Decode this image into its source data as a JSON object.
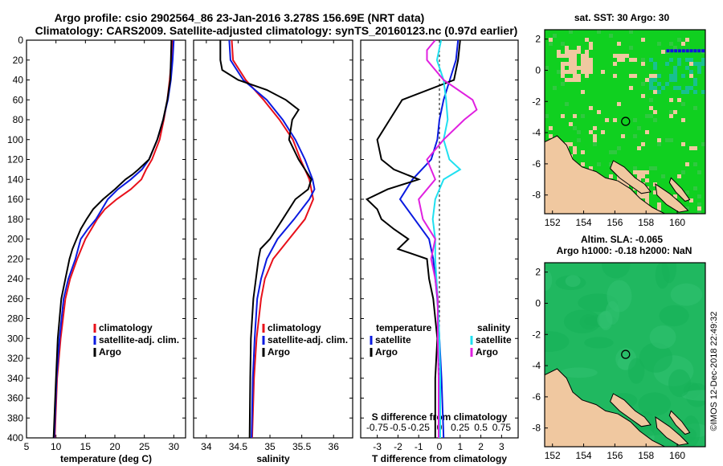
{
  "title_line1": "Argo profile: csio 2902564_86 23-Jan-2016 3.278S 156.69E (NRT data)",
  "title_line2": "Climatology: CARS2009. Satellite-adjusted climatology: synTS_20160123.nc (0.97d earlier)",
  "credit": "©IMOS 12-Dec-2018 22:49:32",
  "colors": {
    "climatology": "#e8101a",
    "satellite": "#0a1ae0",
    "argo": "#000000",
    "sal_sat": "#20e0f0",
    "sal_argo": "#e020e0",
    "land": "#f0c8a0",
    "sst_sea": "#10d020"
  },
  "depth_axis": {
    "ticks": [
      "0",
      "20",
      "40",
      "60",
      "80",
      "100",
      "120",
      "140",
      "160",
      "180",
      "200",
      "220",
      "240",
      "260",
      "280",
      "300",
      "320",
      "340",
      "360",
      "380",
      "400"
    ]
  },
  "chart_data": [
    {
      "type": "line",
      "id": "temperature",
      "xlabel": "temperature (deg C)",
      "ylabel": "",
      "xlim": [
        5,
        32
      ],
      "ylim": [
        400,
        0
      ],
      "xticks": [
        "5",
        "10",
        "15",
        "20",
        "25",
        "30"
      ],
      "xtick_values": [
        5,
        10,
        15,
        20,
        25,
        30
      ],
      "legend": [
        "climatology",
        "satellite-adj. clim.",
        "Argo"
      ],
      "series": [
        {
          "name": "climatology",
          "color": "climatology",
          "depth": [
            0,
            20,
            40,
            60,
            80,
            100,
            120,
            130,
            140,
            150,
            160,
            170,
            180,
            190,
            200,
            220,
            240,
            260,
            300,
            340,
            400
          ],
          "values": [
            29.8,
            29.6,
            29.3,
            28.9,
            28.3,
            27.6,
            26.3,
            25.3,
            24.5,
            22.7,
            20.3,
            18.3,
            17.0,
            16.0,
            15.0,
            13.6,
            12.4,
            11.6,
            10.8,
            10.2,
            9.8
          ]
        },
        {
          "name": "satellite-adj. clim.",
          "color": "satellite",
          "depth": [
            0,
            20,
            40,
            60,
            80,
            100,
            120,
            130,
            140,
            150,
            160,
            170,
            180,
            190,
            200,
            220,
            240,
            260,
            300,
            340,
            400
          ],
          "values": [
            30.0,
            29.8,
            29.5,
            29.0,
            28.2,
            27.2,
            25.8,
            24.6,
            22.7,
            20.5,
            18.8,
            17.8,
            16.8,
            15.4,
            14.2,
            13.3,
            12.1,
            11.3,
            10.6,
            10.1,
            9.7
          ]
        },
        {
          "name": "Argo",
          "color": "argo",
          "depth": [
            0,
            20,
            40,
            60,
            80,
            100,
            120,
            130,
            135,
            140,
            150,
            160,
            170,
            180,
            190,
            200,
            210,
            220,
            240,
            260,
            300,
            340,
            400
          ],
          "values": [
            29.6,
            29.5,
            29.4,
            28.9,
            28.2,
            27.2,
            25.8,
            24.0,
            23.0,
            21.8,
            20.0,
            18.0,
            16.3,
            15.2,
            14.2,
            13.5,
            12.8,
            12.3,
            11.6,
            10.9,
            10.3,
            10.0,
            9.6
          ]
        }
      ]
    },
    {
      "type": "line",
      "id": "salinity",
      "xlabel": "salinity",
      "ylabel": "",
      "xlim": [
        33.8,
        36.3
      ],
      "ylim": [
        400,
        0
      ],
      "xticks": [
        "34",
        "34.5",
        "35",
        "35.5",
        "36"
      ],
      "xtick_values": [
        34,
        34.5,
        35,
        35.5,
        36
      ],
      "legend": [
        "climatology",
        "satellite-adj. clim.",
        "Argo"
      ],
      "series": [
        {
          "name": "climatology",
          "color": "climatology",
          "depth": [
            0,
            20,
            40,
            60,
            80,
            100,
            120,
            140,
            160,
            180,
            200,
            220,
            240,
            260,
            300,
            340,
            400
          ],
          "values": [
            34.4,
            34.42,
            34.62,
            34.9,
            35.15,
            35.36,
            35.48,
            35.62,
            35.68,
            35.55,
            35.3,
            35.05,
            34.92,
            34.86,
            34.79,
            34.75,
            34.72
          ]
        },
        {
          "name": "satellite-adj. clim.",
          "color": "satellite",
          "depth": [
            0,
            20,
            40,
            60,
            80,
            100,
            120,
            140,
            150,
            160,
            180,
            200,
            220,
            240,
            260,
            300,
            340,
            400
          ],
          "values": [
            34.36,
            34.38,
            34.58,
            34.95,
            35.2,
            35.4,
            35.55,
            35.67,
            35.7,
            35.62,
            35.38,
            35.12,
            34.95,
            34.86,
            34.8,
            34.76,
            34.73,
            34.71
          ]
        },
        {
          "name": "Argo",
          "color": "argo",
          "depth": [
            0,
            20,
            30,
            40,
            50,
            60,
            70,
            80,
            100,
            120,
            140,
            150,
            160,
            180,
            200,
            210,
            220,
            240,
            260,
            300,
            340,
            400
          ],
          "values": [
            34.22,
            34.22,
            34.25,
            34.5,
            34.95,
            35.25,
            35.45,
            35.35,
            35.3,
            35.45,
            35.65,
            35.6,
            35.4,
            35.2,
            35.0,
            34.85,
            34.82,
            34.78,
            34.74,
            34.7,
            34.69,
            34.68
          ]
        }
      ]
    },
    {
      "type": "line",
      "id": "difference",
      "xlabel": "T difference from climatology",
      "xlabel_top": "S difference from climatology",
      "xlim": [
        -3.8,
        3.8
      ],
      "ylim": [
        400,
        0
      ],
      "xticks": [
        "-3",
        "-2",
        "-1",
        "0",
        "1",
        "2",
        "3"
      ],
      "xtick_values": [
        -3,
        -2,
        -1,
        0,
        1,
        2,
        3
      ],
      "sticks": [
        "-0.75",
        "-0.5",
        "-0.25",
        "0",
        "0.25",
        "0.5",
        "0.75"
      ],
      "stick_values": [
        -0.75,
        -0.5,
        -0.25,
        0,
        0.25,
        0.5,
        0.75
      ],
      "legend_left_title": "temperature",
      "legend_left": [
        "satellite",
        "Argo"
      ],
      "legend_right_title": "salinity",
      "legend_right": [
        "satellite",
        "Argo"
      ],
      "series": [
        {
          "name": "temperature satellite",
          "color": "satellite",
          "scale": "T",
          "depth": [
            0,
            20,
            40,
            60,
            80,
            100,
            120,
            140,
            160,
            180,
            200,
            220,
            260,
            300,
            340,
            400
          ],
          "values": [
            0.9,
            0.8,
            0.5,
            0.2,
            0.0,
            -0.1,
            -0.4,
            -1.3,
            -1.9,
            -1.2,
            -0.5,
            -0.3,
            -0.1,
            0.0,
            0.1,
            0.2
          ]
        },
        {
          "name": "temperature Argo",
          "color": "argo",
          "scale": "T",
          "depth": [
            0,
            20,
            40,
            60,
            80,
            100,
            120,
            130,
            140,
            150,
            160,
            170,
            180,
            190,
            200,
            210,
            220,
            240,
            260,
            300,
            340,
            400
          ],
          "values": [
            1.0,
            0.9,
            0.7,
            -1.8,
            -2.4,
            -3.0,
            -2.8,
            -2.2,
            -1.0,
            -2.5,
            -3.5,
            -3.0,
            -2.8,
            -2.2,
            -1.5,
            -2.0,
            -0.6,
            -0.5,
            -0.3,
            -0.1,
            -0.2,
            -0.2
          ]
        },
        {
          "name": "salinity satellite",
          "color": "sal_sat",
          "scale": "S",
          "depth": [
            0,
            20,
            40,
            60,
            80,
            100,
            120,
            130,
            140,
            160,
            180,
            200,
            220,
            260,
            300,
            340,
            400
          ],
          "values": [
            0.02,
            -0.03,
            0.05,
            0.08,
            0.1,
            0.05,
            0.12,
            0.25,
            0.05,
            -0.05,
            -0.08,
            -0.05,
            -0.05,
            -0.02,
            0.0,
            0.01,
            0.01
          ]
        },
        {
          "name": "salinity Argo",
          "color": "sal_argo",
          "scale": "S",
          "depth": [
            0,
            10,
            20,
            40,
            60,
            70,
            80,
            100,
            120,
            140,
            160,
            180,
            200,
            220,
            240,
            260,
            300,
            340,
            400
          ],
          "values": [
            -0.05,
            -0.15,
            -0.15,
            0.05,
            0.4,
            0.45,
            0.3,
            0.05,
            -0.15,
            -0.05,
            -0.25,
            -0.2,
            -0.05,
            -0.1,
            -0.05,
            -0.02,
            -0.02,
            -0.01,
            -0.01
          ]
        }
      ]
    },
    {
      "type": "heatmap",
      "id": "sst_map",
      "title": "sat. SST: 30 Argo: 30",
      "xticks": [
        "152",
        "154",
        "156",
        "158",
        "160"
      ],
      "xtick_values": [
        152,
        154,
        156,
        158,
        160
      ],
      "yticks": [
        "2",
        "0",
        "-2",
        "-4",
        "-6",
        "-8"
      ],
      "ytick_values": [
        2,
        0,
        -2,
        -4,
        -6,
        -8
      ],
      "xlim": [
        151.5,
        161.8
      ],
      "ylim": [
        -9.2,
        2.6
      ],
      "float_lon": 156.69,
      "float_lat": -3.278
    },
    {
      "type": "heatmap",
      "id": "sla_map",
      "title_line1": "Altim. SLA: -0.065",
      "title_line2": "Argo h1000: -0.18 h2000: NaN",
      "xticks": [
        "152",
        "154",
        "156",
        "158",
        "160"
      ],
      "xtick_values": [
        152,
        154,
        156,
        158,
        160
      ],
      "yticks": [
        "2",
        "0",
        "-2",
        "-4",
        "-6",
        "-8"
      ],
      "ytick_values": [
        2,
        0,
        -2,
        -4,
        -6,
        -8
      ],
      "xlim": [
        151.5,
        161.8
      ],
      "ylim": [
        -9.2,
        2.6
      ],
      "float_lon": 156.69,
      "float_lat": -3.278
    }
  ]
}
